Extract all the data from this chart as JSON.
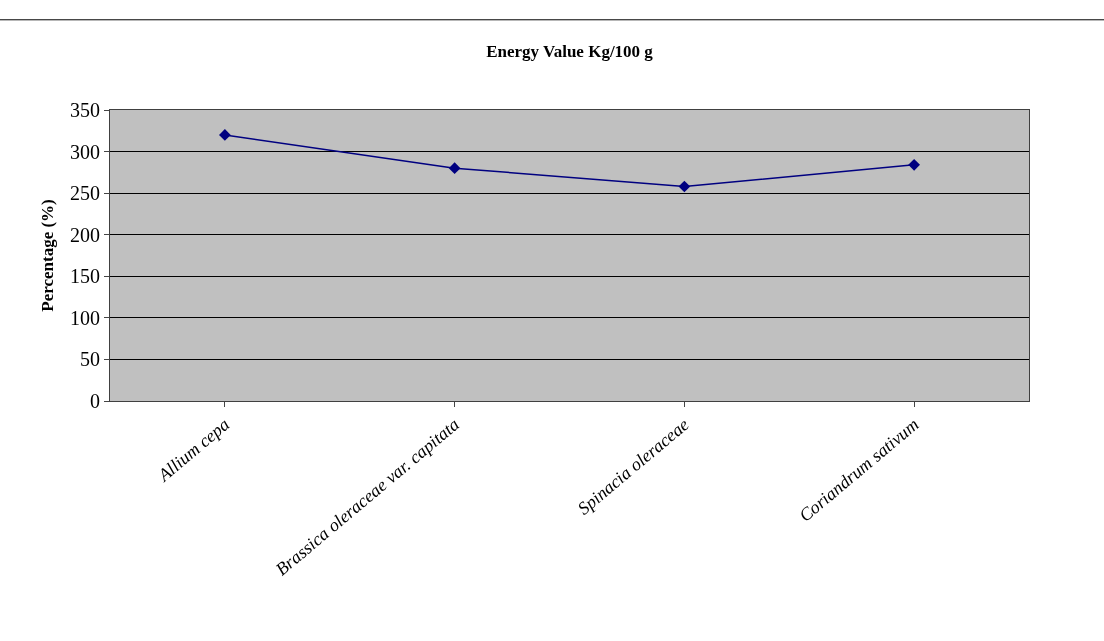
{
  "chart_data": {
    "type": "line",
    "title": "Energy Value Kg/100 g",
    "ylabel": "Percentage (%)",
    "categories": [
      "Allium cepa",
      "Brassica oleraceae var. capitata",
      "Spinacia oleraceae",
      "Coriandrum sativum"
    ],
    "series": [
      {
        "color": "#000080",
        "values": [
          320,
          280,
          258,
          284
        ]
      }
    ],
    "ylim": [
      0,
      350
    ],
    "yticks": [
      0,
      50,
      100,
      150,
      200,
      250,
      300,
      350
    ],
    "grid": "y",
    "marker": "diamond",
    "line_style": "solid",
    "legend": false
  }
}
